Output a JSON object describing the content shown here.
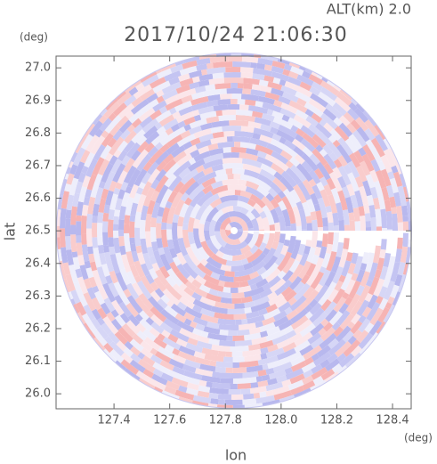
{
  "chart_data": {
    "type": "radar",
    "title": "2017/10/24 21:06:30",
    "subtitle": "ALT(km) 2.0",
    "xlabel": "lon",
    "ylabel": "lat",
    "xunit": "(deg)",
    "yunit": "(deg)",
    "xlim": [
      127.192,
      128.467
    ],
    "ylim": [
      25.954,
      27.036
    ],
    "xticks": [
      127.4,
      127.6,
      127.8,
      {
        "value": 128,
        "label": "128.0"
      },
      128.2,
      128.4
    ],
    "yticks": [
      {
        "value": 26,
        "label": "26.0"
      },
      26.1,
      26.2,
      26.3,
      26.4,
      26.5,
      26.6,
      26.7,
      26.8,
      26.9,
      {
        "value": 27,
        "label": "27.0"
      }
    ]
  }
}
